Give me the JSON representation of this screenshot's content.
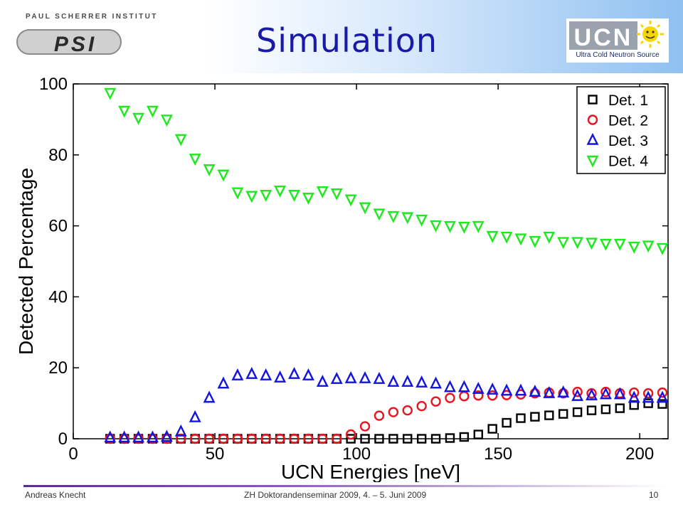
{
  "header": {
    "title": "Simulation",
    "institute_caption": "PAUL SCHERRER INSTITUT",
    "institute_logo_text": "PSI",
    "ucn_logo_text": "UCN",
    "ucn_caption": "Ultra Cold Neutron Source"
  },
  "footer": {
    "author": "Andreas Knecht",
    "event": "ZH Doktorandenseminar 2009, 4. – 5. Juni 2009",
    "page": "10"
  },
  "colors": {
    "title": "#1a1aa8",
    "det1": "#000000",
    "det2": "#e8141e",
    "det3": "#1414e0",
    "det4": "#1ee81e"
  },
  "chart_data": {
    "type": "scatter",
    "xlabel": "UCN Energies [neV]",
    "ylabel": "Detected Percentage",
    "xlim": [
      0,
      210
    ],
    "ylim": [
      0,
      100
    ],
    "xticks": [
      0,
      50,
      100,
      150,
      200
    ],
    "yticks": [
      0,
      20,
      40,
      60,
      80,
      100
    ],
    "legend_position": "top-right",
    "grid": false,
    "x": [
      13,
      18,
      23,
      28,
      33,
      38,
      43,
      48,
      53,
      58,
      63,
      68,
      73,
      78,
      83,
      88,
      93,
      98,
      103,
      108,
      113,
      118,
      123,
      128,
      133,
      138,
      143,
      148,
      153,
      158,
      163,
      168,
      173,
      178,
      183,
      188,
      193,
      198,
      203,
      208
    ],
    "series": [
      {
        "name": "Det. 1",
        "marker": "square",
        "color": "#000000",
        "values": [
          0,
          0,
          0,
          0,
          0,
          0,
          0,
          0,
          0,
          0,
          0,
          0,
          0,
          0,
          0,
          0,
          0,
          0,
          0,
          0,
          0,
          0,
          0,
          0,
          0.2,
          0.5,
          1.2,
          2.8,
          4.5,
          5.8,
          6.2,
          6.6,
          7.0,
          7.5,
          8.0,
          8.3,
          8.6,
          9.5,
          10.0,
          9.8
        ]
      },
      {
        "name": "Det. 2",
        "marker": "circle",
        "color": "#e8141e",
        "values": [
          0,
          0,
          0,
          0,
          0,
          0,
          0,
          0,
          0,
          0,
          0,
          0,
          0,
          0,
          0,
          0,
          0,
          1.2,
          3.5,
          6.5,
          7.5,
          8.0,
          9.2,
          10.5,
          11.5,
          12.0,
          12.2,
          12.2,
          12.3,
          12.5,
          12.8,
          13.0,
          12.8,
          13.2,
          12.8,
          13.2,
          12.8,
          13.0,
          12.8,
          13.0
        ]
      },
      {
        "name": "Det. 3",
        "marker": "triangle-up",
        "color": "#1414e0",
        "values": [
          0.3,
          0.3,
          0.3,
          0.3,
          0.5,
          2.0,
          6.0,
          11.5,
          15.5,
          17.8,
          18.2,
          17.8,
          17.2,
          18.2,
          17.8,
          16.0,
          16.8,
          17.0,
          17.0,
          16.8,
          16.0,
          16.0,
          15.8,
          15.5,
          14.5,
          14.5,
          14.0,
          13.8,
          13.5,
          13.5,
          13.2,
          12.8,
          13.0,
          12.0,
          12.2,
          12.5,
          12.5,
          11.5,
          11.5,
          11.5
        ]
      },
      {
        "name": "Det. 4",
        "marker": "triangle-down",
        "color": "#1ee81e",
        "values": [
          97.5,
          92.5,
          90.5,
          92.5,
          90.0,
          84.5,
          79.0,
          76.0,
          74.5,
          69.5,
          68.5,
          68.8,
          70.0,
          68.8,
          68.0,
          69.8,
          69.2,
          67.5,
          65.3,
          63.5,
          62.8,
          62.5,
          61.8,
          60.2,
          60.0,
          59.8,
          60.0,
          57.2,
          57.0,
          56.5,
          55.8,
          57.0,
          55.5,
          55.5,
          55.3,
          55.0,
          55.0,
          54.2,
          54.5,
          53.8
        ]
      }
    ]
  }
}
